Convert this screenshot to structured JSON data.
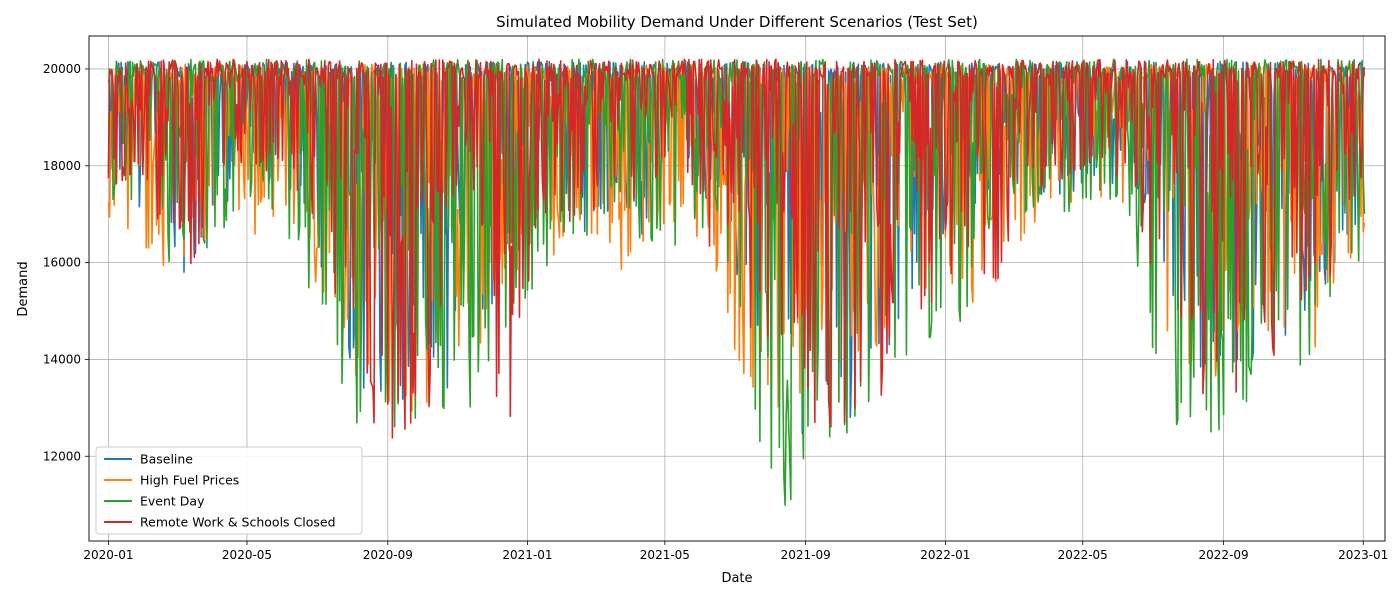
{
  "chart_data": {
    "type": "line",
    "title": "Simulated Mobility Demand Under Different Scenarios (Test Set)",
    "xlabel": "Date",
    "ylabel": "Demand",
    "x_range": [
      "2019-12-15",
      "2023-01-20"
    ],
    "ylim": [
      10250,
      20680
    ],
    "grid": true,
    "legend_position": "lower-left",
    "x_ticks": [
      "2020-01",
      "2020-05",
      "2020-09",
      "2021-01",
      "2021-05",
      "2021-09",
      "2022-01",
      "2022-05",
      "2022-09",
      "2023-01"
    ],
    "y_ticks": [
      12000,
      14000,
      16000,
      18000,
      20000
    ],
    "series": [
      {
        "name": "Baseline",
        "color": "#1f77b4",
        "approx_pattern": {
          "high_envelope": 20150,
          "summer_minimum": 11950,
          "monthly_lower_envelope": [
            [
              "2020-01",
              17600
            ],
            [
              "2020-02",
              16400
            ],
            [
              "2020-03",
              15500
            ],
            [
              "2020-04",
              17300
            ],
            [
              "2020-05",
              17500
            ],
            [
              "2020-06",
              17000
            ],
            [
              "2020-07",
              15000
            ],
            [
              "2020-08",
              12700
            ],
            [
              "2020-09",
              12400
            ],
            [
              "2020-10",
              13200
            ],
            [
              "2020-11",
              13900
            ],
            [
              "2020-12",
              15500
            ],
            [
              "2021-01",
              16900
            ],
            [
              "2021-02",
              16500
            ],
            [
              "2021-03",
              16900
            ],
            [
              "2021-04",
              16500
            ],
            [
              "2021-05",
              17800
            ],
            [
              "2021-06",
              17000
            ],
            [
              "2021-07",
              14700
            ],
            [
              "2021-08",
              12100
            ],
            [
              "2021-09",
              11950
            ],
            [
              "2021-10",
              12900
            ],
            [
              "2021-11",
              13900
            ],
            [
              "2021-12",
              15500
            ],
            [
              "2022-01",
              16600
            ],
            [
              "2022-02",
              16800
            ],
            [
              "2022-03",
              17200
            ],
            [
              "2022-04",
              17300
            ],
            [
              "2022-05",
              17700
            ],
            [
              "2022-06",
              17200
            ],
            [
              "2022-07",
              14700
            ],
            [
              "2022-08",
              13500
            ],
            [
              "2022-09",
              13800
            ],
            [
              "2022-10",
              14200
            ],
            [
              "2022-11",
              14600
            ],
            [
              "2022-12",
              16500
            ]
          ]
        }
      },
      {
        "name": "High Fuel Prices",
        "color": "#ff7f0e",
        "approx_pattern": {
          "high_envelope": 20100,
          "summer_minimum": 12450,
          "monthly_lower_envelope": [
            [
              "2020-01",
              16500
            ],
            [
              "2020-02",
              15200
            ],
            [
              "2020-03",
              16100
            ],
            [
              "2020-04",
              17200
            ],
            [
              "2020-05",
              16400
            ],
            [
              "2020-06",
              16500
            ],
            [
              "2020-07",
              14600
            ],
            [
              "2020-08",
              12800
            ],
            [
              "2020-09",
              12700
            ],
            [
              "2020-10",
              13000
            ],
            [
              "2020-11",
              12500
            ],
            [
              "2020-12",
              15400
            ],
            [
              "2021-01",
              15500
            ],
            [
              "2021-02",
              16900
            ],
            [
              "2021-03",
              15600
            ],
            [
              "2021-04",
              16300
            ],
            [
              "2021-05",
              16900
            ],
            [
              "2021-06",
              15800
            ],
            [
              "2021-07",
              12600
            ],
            [
              "2021-08",
              12700
            ],
            [
              "2021-09",
              13200
            ],
            [
              "2021-10",
              12900
            ],
            [
              "2021-11",
              13700
            ],
            [
              "2021-12",
              15200
            ],
            [
              "2022-01",
              15100
            ],
            [
              "2022-02",
              15300
            ],
            [
              "2022-03",
              16600
            ],
            [
              "2022-04",
              17200
            ],
            [
              "2022-05",
              17300
            ],
            [
              "2022-06",
              17100
            ],
            [
              "2022-07",
              14200
            ],
            [
              "2022-08",
              13600
            ],
            [
              "2022-09",
              13600
            ],
            [
              "2022-10",
              13600
            ],
            [
              "2022-11",
              13900
            ],
            [
              "2022-12",
              16000
            ]
          ]
        }
      },
      {
        "name": "Event Day",
        "color": "#2ca02c",
        "approx_pattern": {
          "high_envelope": 20200,
          "summer_minimum": 10750,
          "monthly_lower_envelope": [
            [
              "2020-01",
              16800
            ],
            [
              "2020-02",
              15600
            ],
            [
              "2020-03",
              16100
            ],
            [
              "2020-04",
              16600
            ],
            [
              "2020-05",
              17500
            ],
            [
              "2020-06",
              15900
            ],
            [
              "2020-07",
              14000
            ],
            [
              "2020-08",
              11800
            ],
            [
              "2020-09",
              11700
            ],
            [
              "2020-10",
              12100
            ],
            [
              "2020-11",
              12800
            ],
            [
              "2020-12",
              14700
            ],
            [
              "2021-01",
              15700
            ],
            [
              "2021-02",
              16300
            ],
            [
              "2021-03",
              16600
            ],
            [
              "2021-04",
              16300
            ],
            [
              "2021-05",
              16300
            ],
            [
              "2021-06",
              16800
            ],
            [
              "2021-07",
              11400
            ],
            [
              "2021-08",
              10750
            ],
            [
              "2021-09",
              11700
            ],
            [
              "2021-10",
              12500
            ],
            [
              "2021-11",
              13200
            ],
            [
              "2021-12",
              14200
            ],
            [
              "2022-01",
              14800
            ],
            [
              "2022-02",
              16400
            ],
            [
              "2022-03",
              17000
            ],
            [
              "2022-04",
              16700
            ],
            [
              "2022-05",
              17400
            ],
            [
              "2022-06",
              16200
            ],
            [
              "2022-07",
              12400
            ],
            [
              "2022-08",
              12400
            ],
            [
              "2022-09",
              12700
            ],
            [
              "2022-10",
              13000
            ],
            [
              "2022-11",
              14100
            ],
            [
              "2022-12",
              15600
            ]
          ]
        }
      },
      {
        "name": "Remote Work & Schools Closed",
        "color": "#d62728",
        "approx_pattern": {
          "high_envelope": 20200,
          "summer_minimum": 12150,
          "monthly_lower_envelope": [
            [
              "2020-01",
              17600
            ],
            [
              "2020-02",
              16700
            ],
            [
              "2020-03",
              15900
            ],
            [
              "2020-04",
              17900
            ],
            [
              "2020-05",
              17900
            ],
            [
              "2020-06",
              17300
            ],
            [
              "2020-07",
              15200
            ],
            [
              "2020-08",
              12700
            ],
            [
              "2020-09",
              12200
            ],
            [
              "2020-10",
              13300
            ],
            [
              "2020-11",
              13800
            ],
            [
              "2020-12",
              12500
            ],
            [
              "2021-01",
              16900
            ],
            [
              "2021-02",
              16800
            ],
            [
              "2021-03",
              17200
            ],
            [
              "2021-04",
              17100
            ],
            [
              "2021-05",
              18300
            ],
            [
              "2021-06",
              15600
            ],
            [
              "2021-07",
              13700
            ],
            [
              "2021-08",
              12500
            ],
            [
              "2021-09",
              12300
            ],
            [
              "2021-10",
              12150
            ],
            [
              "2021-11",
              13600
            ],
            [
              "2021-12",
              14900
            ],
            [
              "2022-01",
              15800
            ],
            [
              "2022-02",
              15600
            ],
            [
              "2022-03",
              17400
            ],
            [
              "2022-04",
              17700
            ],
            [
              "2022-05",
              18000
            ],
            [
              "2022-06",
              17400
            ],
            [
              "2022-07",
              14200
            ],
            [
              "2022-08",
              12900
            ],
            [
              "2022-09",
              13200
            ],
            [
              "2022-10",
              14000
            ],
            [
              "2022-11",
              14100
            ],
            [
              "2022-12",
              16500
            ]
          ]
        }
      }
    ]
  }
}
